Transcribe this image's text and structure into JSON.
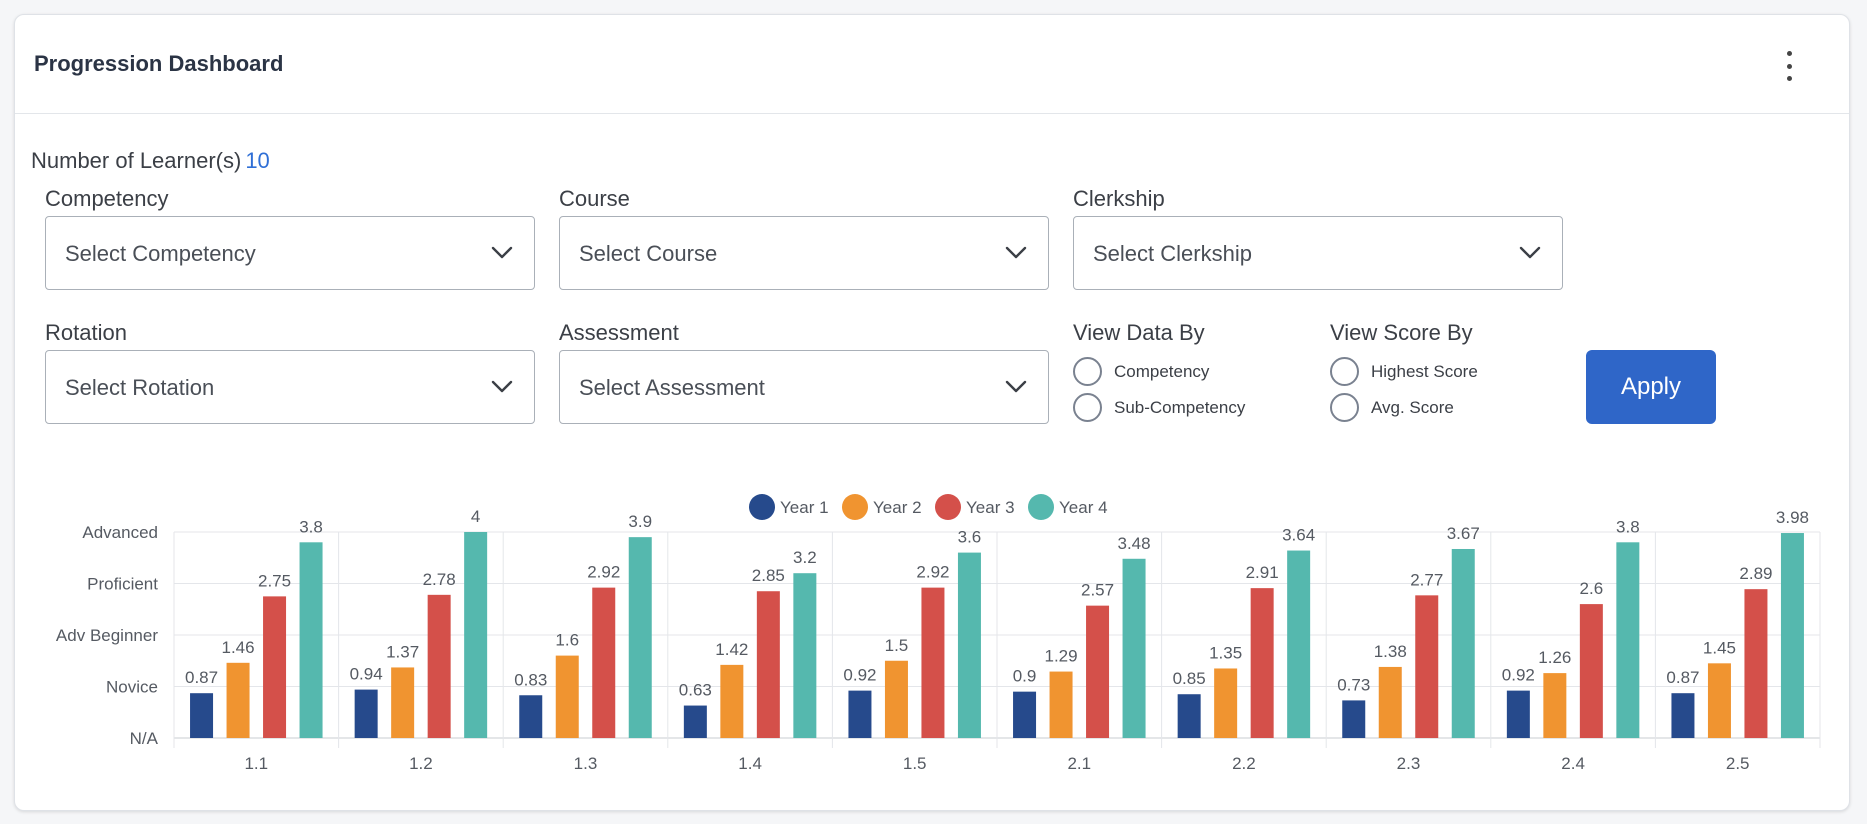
{
  "header": {
    "title": "Progression Dashboard",
    "menu_icon": "more-vertical-icon"
  },
  "learners": {
    "label": "Number of Learner(s)",
    "count": "10"
  },
  "filters": {
    "competency": {
      "label": "Competency",
      "value": "Select Competency"
    },
    "course": {
      "label": "Course",
      "value": "Select Course"
    },
    "clerkship": {
      "label": "Clerkship",
      "value": "Select Clerkship"
    },
    "rotation": {
      "label": "Rotation",
      "value": "Select Rotation"
    },
    "assessment": {
      "label": "Assessment",
      "value": "Select Assessment"
    }
  },
  "view_data_by": {
    "label": "View Data By",
    "options": [
      "Competency",
      "Sub-Competency"
    ]
  },
  "view_score_by": {
    "label": "View Score By",
    "options": [
      "Highest Score",
      "Avg. Score"
    ]
  },
  "apply_label": "Apply",
  "chart_data": {
    "type": "bar",
    "categories": [
      "1.1",
      "1.2",
      "1.3",
      "1.4",
      "1.5",
      "2.1",
      "2.2",
      "2.3",
      "2.4",
      "2.5"
    ],
    "series": [
      {
        "name": "Year 1",
        "color": "#264a8c",
        "values": [
          0.87,
          0.94,
          0.83,
          0.63,
          0.92,
          0.9,
          0.85,
          0.73,
          0.92,
          0.87
        ]
      },
      {
        "name": "Year 2",
        "color": "#f09430",
        "values": [
          1.46,
          1.37,
          1.6,
          1.42,
          1.5,
          1.29,
          1.35,
          1.38,
          1.26,
          1.45
        ]
      },
      {
        "name": "Year 3",
        "color": "#d4504a",
        "values": [
          2.75,
          2.78,
          2.92,
          2.85,
          2.92,
          2.57,
          2.91,
          2.77,
          2.6,
          2.89
        ]
      },
      {
        "name": "Year 4",
        "color": "#55b8ae",
        "values": [
          3.8,
          4,
          3.9,
          3.2,
          3.6,
          3.48,
          3.64,
          3.67,
          3.8,
          3.98
        ]
      }
    ],
    "y_ticks": [
      {
        "value": 0,
        "label": "N/A"
      },
      {
        "value": 1,
        "label": "Novice"
      },
      {
        "value": 2,
        "label": "Adv Beginner"
      },
      {
        "value": 3,
        "label": "Proficient"
      },
      {
        "value": 4,
        "label": "Advanced"
      }
    ],
    "ylim": [
      0,
      4
    ],
    "legend_position": "top-center",
    "grid": true,
    "data_labels": true
  }
}
